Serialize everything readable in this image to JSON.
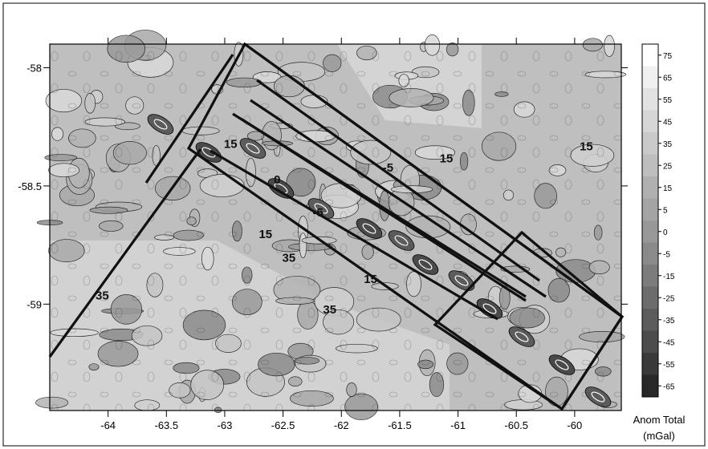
{
  "chart_data": {
    "type": "heatmap",
    "title": "",
    "xlabel": "",
    "ylabel": "",
    "x_ticks": [
      "-64",
      "-63.5",
      "-63",
      "-62.5",
      "-62",
      "-61.5",
      "-61",
      "-60.5",
      "-60"
    ],
    "x_tick_values": [
      -64,
      -63.5,
      -63,
      -62.5,
      -62,
      -61.5,
      -61,
      -60.5,
      -60
    ],
    "y_ticks": [
      "-58",
      "-58.5",
      "-59"
    ],
    "y_tick_values": [
      -58,
      -58.5,
      -59
    ],
    "xlim": [
      -64.5,
      -59.6
    ],
    "ylim": [
      -59.45,
      -57.9
    ],
    "colorbar": {
      "title_line1": "Anom Total",
      "title_line2": "(mGal)",
      "levels": [
        "75",
        "65",
        "55",
        "45",
        "35",
        "25",
        "15",
        "5",
        "0",
        "-5",
        "-15",
        "-25",
        "-35",
        "-45",
        "-55",
        "-65"
      ],
      "colors": [
        "#ffffff",
        "#f0f0f0",
        "#e2e2e2",
        "#d6d6d6",
        "#cacaca",
        "#bebebe",
        "#b0b0b0",
        "#a4a4a4",
        "#989898",
        "#8a8a8a",
        "#7c7c7c",
        "#6c6c6c",
        "#5c5c5c",
        "#4c4c4c",
        "#3a3a3a",
        "#282828"
      ]
    },
    "contour_labels": [
      {
        "text": "15",
        "x": -62.95,
        "y": -58.34
      },
      {
        "text": "15",
        "x": -62.65,
        "y": -58.72
      },
      {
        "text": "35",
        "x": -62.45,
        "y": -58.82
      },
      {
        "text": "15",
        "x": -61.75,
        "y": -58.91
      },
      {
        "text": "35",
        "x": -62.1,
        "y": -59.04
      },
      {
        "text": "15",
        "x": -61.1,
        "y": -58.4
      },
      {
        "text": "-5",
        "x": -61.6,
        "y": -58.44
      },
      {
        "text": "0",
        "x": -62.55,
        "y": -58.49
      },
      {
        "text": "-5",
        "x": -62.2,
        "y": -58.63
      },
      {
        "text": "35",
        "x": -64.05,
        "y": -58.98
      },
      {
        "text": "15",
        "x": -59.9,
        "y": -58.35
      }
    ],
    "grid": false
  }
}
